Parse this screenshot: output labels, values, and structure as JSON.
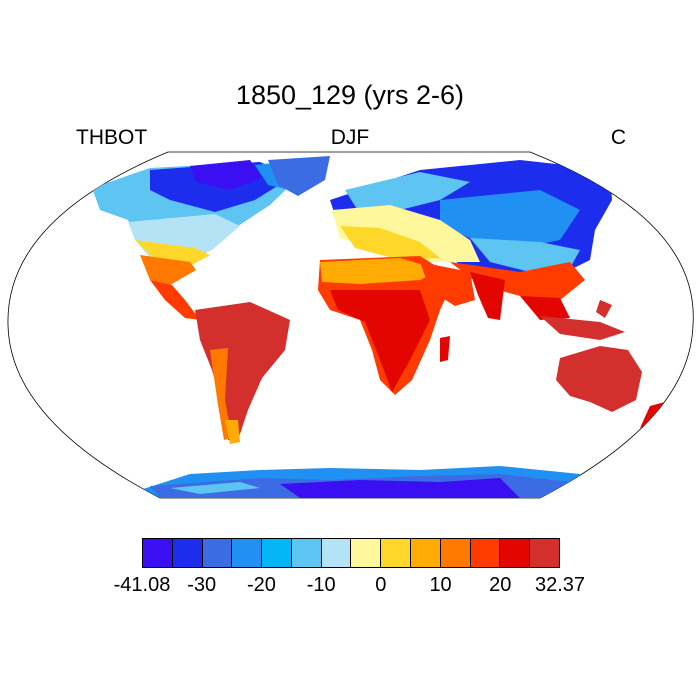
{
  "title": "1850_129 (yrs 2-6)",
  "left_label": "THBOT",
  "center_label": "DJF",
  "right_label": "C",
  "colorbar": {
    "colors": [
      "#3a10f2",
      "#1d2ded",
      "#3c6ce4",
      "#2091f2",
      "#05b6f7",
      "#5ec4f2",
      "#b4e3f6",
      "#fff79c",
      "#ffd72b",
      "#ffab03",
      "#ff7900",
      "#ff3b00",
      "#e20500",
      "#d3302d"
    ],
    "tick_labels": [
      "-41.08",
      "-30",
      "-20",
      "-10",
      "0",
      "10",
      "20",
      "32.37"
    ]
  },
  "chart_data": {
    "type": "heatmap",
    "title": "1850_129 (yrs 2-6)",
    "variable": "THBOT",
    "season": "DJF",
    "units": "C",
    "value_range": [
      -41.08,
      32.37
    ],
    "levels": [
      -30,
      -25,
      -20,
      -15,
      -10,
      -5,
      0,
      5,
      10,
      15,
      20,
      25
    ],
    "projection": "Robinson"
  }
}
